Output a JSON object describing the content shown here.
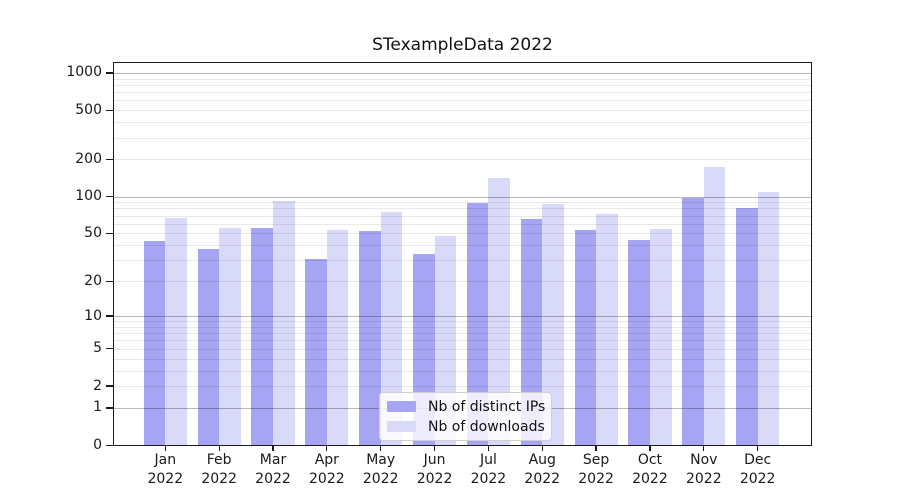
{
  "title": "STexampleData 2022",
  "legend": {
    "items": [
      {
        "label": "Nb of distinct IPs",
        "color": "#a5a5f3"
      },
      {
        "label": "Nb of downloads",
        "color": "#d9d9f9"
      }
    ]
  },
  "colors": {
    "bar_distinct_ips": "#a5a5f3",
    "bar_downloads": "#d9d9f9",
    "gridline_major": "rgba(0,0,0,0.28)",
    "gridline_minor": "rgba(0,0,0,0.09)",
    "axis_frame": "#1a1a1a",
    "text": "#1a1a1a"
  },
  "chart_data": {
    "type": "bar",
    "title": "STexampleData 2022",
    "xlabel": "",
    "ylabel": "",
    "yscale": "pseudo-log (log10(1+y))",
    "ylim": [
      0,
      1200
    ],
    "grid": true,
    "legend_position": "lower center",
    "x_year": "2022",
    "categories": [
      "Jan",
      "Feb",
      "Mar",
      "Apr",
      "May",
      "Jun",
      "Jul",
      "Aug",
      "Sep",
      "Oct",
      "Nov",
      "Dec"
    ],
    "y_ticks": [
      {
        "value": 0,
        "label": "0"
      },
      {
        "value": 1,
        "label": "1"
      },
      {
        "value": 2,
        "label": "2"
      },
      {
        "value": 5,
        "label": "5"
      },
      {
        "value": 10,
        "label": "10"
      },
      {
        "value": 20,
        "label": "20"
      },
      {
        "value": 50,
        "label": "50"
      },
      {
        "value": 100,
        "label": "100"
      },
      {
        "value": 200,
        "label": "200"
      },
      {
        "value": 500,
        "label": "500"
      },
      {
        "value": 1000,
        "label": "1000"
      }
    ],
    "major_gridlines": [
      1,
      10,
      100,
      1000
    ],
    "minor_gridlines": [
      2,
      3,
      4,
      5,
      6,
      7,
      8,
      9,
      20,
      30,
      40,
      50,
      60,
      70,
      80,
      90,
      200,
      300,
      400,
      500,
      600,
      700,
      800,
      900
    ],
    "series": [
      {
        "name": "Nb of distinct IPs",
        "color": "#a5a5f3",
        "values": [
          43,
          37,
          55,
          31,
          52,
          34,
          88,
          65,
          53,
          44,
          98,
          80
        ]
      },
      {
        "name": "Nb of downloads",
        "color": "#d9d9f9",
        "values": [
          67,
          55,
          92,
          53,
          75,
          48,
          142,
          87,
          72,
          54,
          175,
          108
        ]
      }
    ]
  }
}
